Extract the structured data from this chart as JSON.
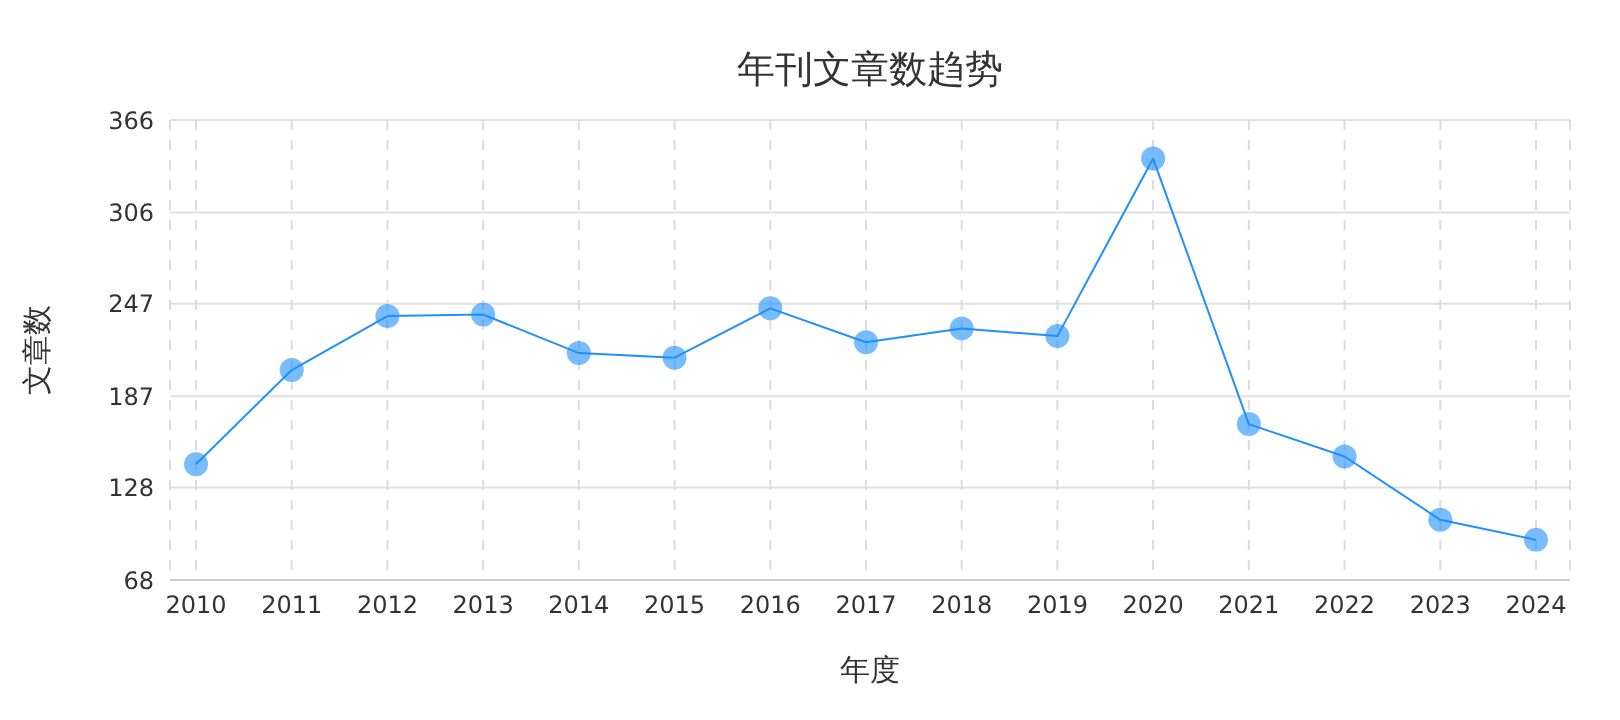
{
  "chart_data": {
    "type": "line",
    "title": "年刊文章数趋势",
    "xlabel": "年度",
    "ylabel": "文章数",
    "categories": [
      "2010",
      "2011",
      "2012",
      "2013",
      "2014",
      "2015",
      "2016",
      "2017",
      "2018",
      "2019",
      "2020",
      "2021",
      "2022",
      "2023",
      "2024"
    ],
    "series": [
      {
        "color": "#1e90ff",
        "values": [
          143,
          204,
          239,
          240,
          215,
          212,
          244,
          222,
          231,
          226,
          341,
          169,
          148,
          107,
          94
        ]
      }
    ],
    "ylim": [
      68,
      366
    ],
    "yticks": [
      68,
      128,
      187,
      247,
      306,
      366
    ],
    "grid": true,
    "marker": "circle",
    "line_style": "solid"
  }
}
